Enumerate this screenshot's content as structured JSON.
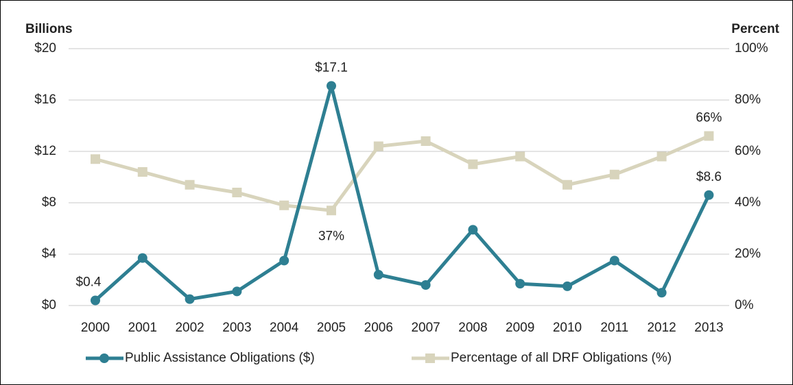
{
  "chart_data": {
    "type": "line",
    "y_label": "Billions",
    "y2_label": "Percent",
    "categories": [
      "2000",
      "2001",
      "2002",
      "2003",
      "2004",
      "2005",
      "2006",
      "2007",
      "2008",
      "2009",
      "2010",
      "2011",
      "2012",
      "2013"
    ],
    "series": [
      {
        "name": "Public Assistance Obligations ($)",
        "color": "#2e7f92",
        "marker": "circle",
        "values": [
          0.4,
          3.7,
          0.5,
          1.1,
          3.5,
          17.1,
          2.4,
          1.6,
          5.9,
          1.7,
          1.5,
          3.5,
          1.0,
          8.6
        ],
        "value_labels": [
          "$0.4",
          null,
          null,
          null,
          null,
          "$17.1",
          null,
          null,
          null,
          null,
          null,
          null,
          null,
          "$8.6"
        ]
      },
      {
        "name": "Percentage of all DRF Obligations (%)",
        "color": "#d8d4bc",
        "marker": "square",
        "axis": "y2",
        "values": [
          57,
          52,
          47,
          44,
          39,
          37,
          62,
          64,
          55,
          58,
          47,
          51,
          58,
          66
        ],
        "value_labels": [
          null,
          null,
          null,
          null,
          null,
          "37%",
          null,
          null,
          null,
          null,
          null,
          null,
          null,
          "66%"
        ]
      }
    ],
    "ylim": [
      0,
      20
    ],
    "yticks": [
      {
        "value": 0,
        "label": "$0"
      },
      {
        "value": 4,
        "label": "$4"
      },
      {
        "value": 8,
        "label": "$8"
      },
      {
        "value": 12,
        "label": "$12"
      },
      {
        "value": 16,
        "label": "$16"
      },
      {
        "value": 20,
        "label": "$20"
      }
    ],
    "y2lim": [
      0,
      100
    ],
    "y2ticks": [
      {
        "value": 0,
        "label": "0%"
      },
      {
        "value": 20,
        "label": "20%"
      },
      {
        "value": 40,
        "label": "40%"
      },
      {
        "value": 60,
        "label": "60%"
      },
      {
        "value": 80,
        "label": "80%"
      },
      {
        "value": 100,
        "label": "100%"
      }
    ],
    "grid": true,
    "legend": "bottom"
  }
}
